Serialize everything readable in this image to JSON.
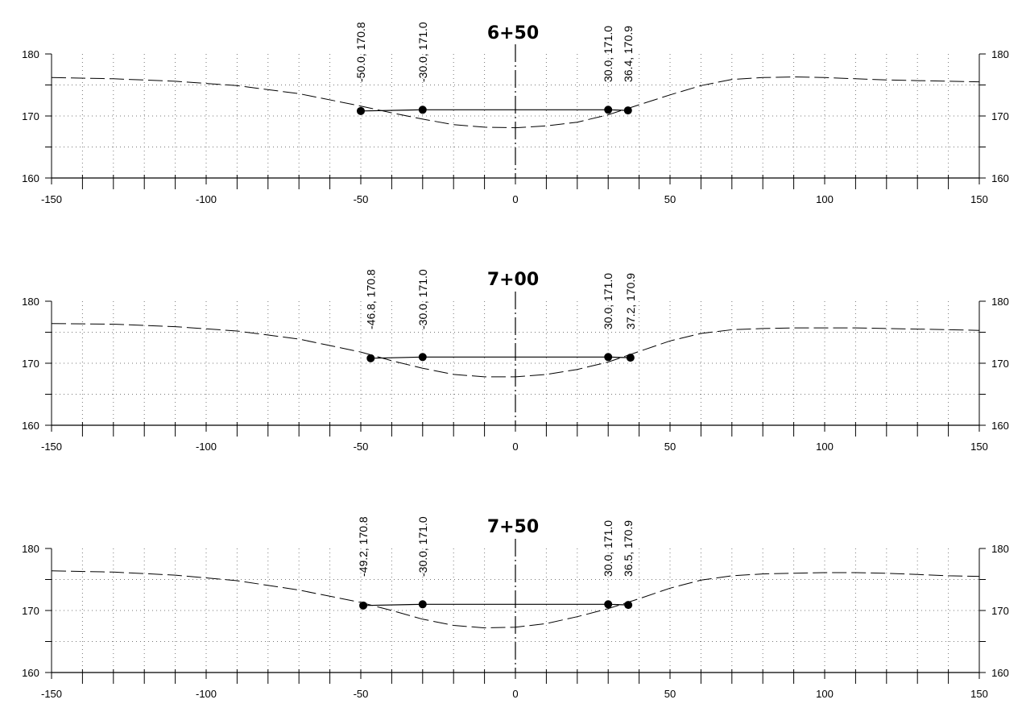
{
  "chart_data": [
    {
      "type": "line",
      "title": "6+50",
      "xlim": [
        -150,
        150
      ],
      "ylim": [
        160,
        180
      ],
      "x_ticks": [
        -150,
        -100,
        -50,
        0,
        50,
        100,
        150
      ],
      "x_tick_labels": [
        "-150",
        "-100",
        "-50",
        "0",
        "50",
        "100",
        "150"
      ],
      "y_ticks": [
        160,
        170,
        180
      ],
      "y_tick_labels": [
        "160",
        "170",
        "180"
      ],
      "grid": true,
      "series": [
        {
          "kind": "existing-ground",
          "style": "dashed",
          "x": [
            -150,
            -130,
            -110,
            -90,
            -70,
            -50,
            -40,
            -30,
            -20,
            -10,
            0,
            10,
            20,
            30,
            40,
            50,
            60,
            70,
            80,
            90,
            100,
            110,
            120,
            130,
            140,
            150
          ],
          "y": [
            176.2,
            176.0,
            175.6,
            174.9,
            173.6,
            171.6,
            170.5,
            169.5,
            168.6,
            168.2,
            168.1,
            168.4,
            169.0,
            170.2,
            171.8,
            173.4,
            174.9,
            175.9,
            176.2,
            176.3,
            176.2,
            176.0,
            175.8,
            175.7,
            175.6,
            175.5
          ]
        },
        {
          "kind": "proposed-section",
          "style": "solid",
          "points": [
            {
              "x": -50.0,
              "y": 170.8,
              "label": "-50.0, 170.8"
            },
            {
              "x": -30.0,
              "y": 171.0,
              "label": "-30.0, 171.0"
            },
            {
              "x": 30.0,
              "y": 171.0,
              "label": "30.0, 171.0"
            },
            {
              "x": 36.4,
              "y": 170.9,
              "label": "36.4, 170.9"
            }
          ]
        }
      ]
    },
    {
      "type": "line",
      "title": "7+00",
      "xlim": [
        -150,
        150
      ],
      "ylim": [
        160,
        180
      ],
      "x_ticks": [
        -150,
        -100,
        -50,
        0,
        50,
        100,
        150
      ],
      "x_tick_labels": [
        "-150",
        "-100",
        "-50",
        "0",
        "50",
        "100",
        "150"
      ],
      "y_ticks": [
        160,
        170,
        180
      ],
      "y_tick_labels": [
        "160",
        "170",
        "180"
      ],
      "grid": true,
      "series": [
        {
          "kind": "existing-ground",
          "style": "dashed",
          "x": [
            -150,
            -130,
            -110,
            -90,
            -70,
            -50,
            -40,
            -30,
            -20,
            -10,
            0,
            10,
            20,
            30,
            40,
            50,
            60,
            70,
            80,
            90,
            100,
            110,
            120,
            130,
            140,
            150
          ],
          "y": [
            176.4,
            176.3,
            175.9,
            175.2,
            173.9,
            171.8,
            170.4,
            169.2,
            168.2,
            167.8,
            167.8,
            168.2,
            169.0,
            170.2,
            171.9,
            173.6,
            174.8,
            175.4,
            175.6,
            175.7,
            175.7,
            175.7,
            175.6,
            175.5,
            175.4,
            175.3
          ]
        },
        {
          "kind": "proposed-section",
          "style": "solid",
          "points": [
            {
              "x": -46.8,
              "y": 170.8,
              "label": "-46.8, 170.8"
            },
            {
              "x": -30.0,
              "y": 171.0,
              "label": "-30.0, 171.0"
            },
            {
              "x": 30.0,
              "y": 171.0,
              "label": "30.0, 171.0"
            },
            {
              "x": 37.2,
              "y": 170.9,
              "label": "37.2, 170.9"
            }
          ]
        }
      ]
    },
    {
      "type": "line",
      "title": "7+50",
      "xlim": [
        -150,
        150
      ],
      "ylim": [
        160,
        180
      ],
      "x_ticks": [
        -150,
        -100,
        -50,
        0,
        50,
        100,
        150
      ],
      "x_tick_labels": [
        "-150",
        "-100",
        "-50",
        "0",
        "50",
        "100",
        "150"
      ],
      "y_ticks": [
        160,
        170,
        180
      ],
      "y_tick_labels": [
        "160",
        "170",
        "180"
      ],
      "grid": true,
      "series": [
        {
          "kind": "existing-ground",
          "style": "dashed",
          "x": [
            -150,
            -130,
            -110,
            -90,
            -70,
            -50,
            -40,
            -30,
            -20,
            -10,
            0,
            10,
            20,
            30,
            40,
            50,
            60,
            70,
            80,
            90,
            100,
            110,
            120,
            130,
            140,
            150
          ],
          "y": [
            176.4,
            176.2,
            175.7,
            174.8,
            173.3,
            171.3,
            170.0,
            168.6,
            167.6,
            167.2,
            167.3,
            167.9,
            169.0,
            170.3,
            171.9,
            173.6,
            174.9,
            175.6,
            175.9,
            176.0,
            176.1,
            176.1,
            176.0,
            175.8,
            175.6,
            175.5
          ]
        },
        {
          "kind": "proposed-section",
          "style": "solid",
          "points": [
            {
              "x": -49.2,
              "y": 170.8,
              "label": "-49.2, 170.8"
            },
            {
              "x": -30.0,
              "y": 171.0,
              "label": "-30.0, 171.0"
            },
            {
              "x": 30.0,
              "y": 171.0,
              "label": "30.0, 171.0"
            },
            {
              "x": 36.5,
              "y": 170.9,
              "label": "36.5, 170.9"
            }
          ]
        }
      ]
    }
  ]
}
